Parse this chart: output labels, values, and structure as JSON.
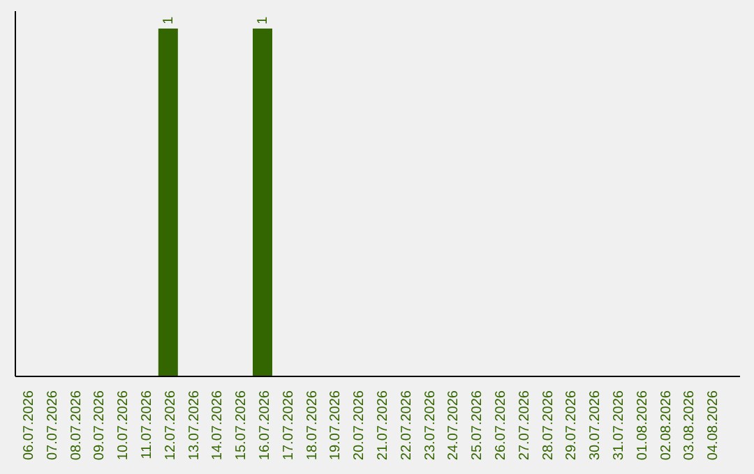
{
  "chart_data": {
    "type": "bar",
    "categories": [
      "06.07.2026",
      "07.07.2026",
      "08.07.2026",
      "09.07.2026",
      "10.07.2026",
      "11.07.2026",
      "12.07.2026",
      "13.07.2026",
      "14.07.2026",
      "15.07.2026",
      "16.07.2026",
      "17.07.2026",
      "18.07.2026",
      "19.07.2026",
      "20.07.2026",
      "21.07.2026",
      "22.07.2026",
      "23.07.2026",
      "24.07.2026",
      "25.07.2026",
      "26.07.2026",
      "27.07.2026",
      "28.07.2026",
      "29.07.2026",
      "30.07.2026",
      "31.07.2026",
      "01.08.2026",
      "02.08.2026",
      "03.08.2026",
      "04.08.2026"
    ],
    "values": [
      0,
      0,
      0,
      0,
      0,
      0,
      1,
      0,
      0,
      0,
      1,
      0,
      0,
      0,
      0,
      0,
      0,
      0,
      0,
      0,
      0,
      0,
      0,
      0,
      0,
      0,
      0,
      0,
      0,
      0
    ],
    "value_labels": [
      null,
      null,
      null,
      null,
      null,
      null,
      "1",
      null,
      null,
      null,
      "1",
      null,
      null,
      null,
      null,
      null,
      null,
      null,
      null,
      null,
      null,
      null,
      null,
      null,
      null,
      null,
      null,
      null,
      null,
      null
    ],
    "color": "#336600",
    "grid": false,
    "legend": false
  }
}
